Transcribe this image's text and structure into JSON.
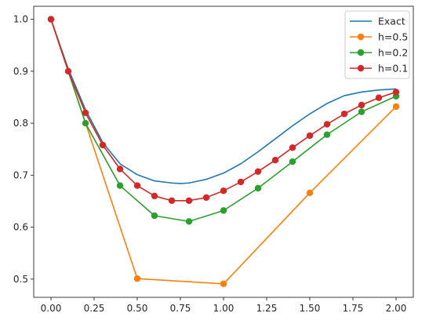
{
  "chart_data": {
    "type": "line",
    "title": "",
    "xlabel": "",
    "ylabel": "",
    "xlim": [
      -0.1,
      2.1
    ],
    "ylim": [
      0.465,
      1.025
    ],
    "x_ticks": [
      0.0,
      0.25,
      0.5,
      0.75,
      1.0,
      1.25,
      1.5,
      1.75,
      2.0
    ],
    "x_tick_labels": [
      "0.00",
      "0.25",
      "0.50",
      "0.75",
      "1.00",
      "1.25",
      "1.50",
      "1.75",
      "2.00"
    ],
    "y_ticks": [
      0.5,
      0.6,
      0.7,
      0.8,
      0.9,
      1.0
    ],
    "y_tick_labels": [
      "0.5",
      "0.6",
      "0.7",
      "0.8",
      "0.9",
      "1.0"
    ],
    "grid": false,
    "legend_position": "top-right",
    "series": [
      {
        "name": "Exact",
        "color": "#1f77b4",
        "marker": "none",
        "x": [
          0.0,
          0.1,
          0.2,
          0.3,
          0.4,
          0.5,
          0.6,
          0.7,
          0.75,
          0.8,
          0.9,
          1.0,
          1.1,
          1.2,
          1.3,
          1.4,
          1.5,
          1.6,
          1.7,
          1.8,
          1.9,
          2.0
        ],
        "values": [
          1.0,
          0.905,
          0.826,
          0.763,
          0.722,
          0.701,
          0.689,
          0.685,
          0.684,
          0.685,
          0.692,
          0.704,
          0.722,
          0.745,
          0.77,
          0.795,
          0.818,
          0.838,
          0.853,
          0.86,
          0.864,
          0.866
        ]
      },
      {
        "name": "h=0.5",
        "color": "#ff7f0e",
        "marker": "circle",
        "x": [
          0.0,
          0.5,
          1.0,
          1.5,
          2.0
        ],
        "values": [
          1.0,
          0.501,
          0.491,
          0.666,
          0.832
        ]
      },
      {
        "name": "h=0.2",
        "color": "#2ca02c",
        "marker": "circle",
        "x": [
          0.0,
          0.2,
          0.4,
          0.6,
          0.8,
          1.0,
          1.2,
          1.4,
          1.6,
          1.8,
          2.0
        ],
        "values": [
          1.0,
          0.8,
          0.68,
          0.622,
          0.611,
          0.632,
          0.675,
          0.726,
          0.778,
          0.822,
          0.852
        ]
      },
      {
        "name": "h=0.1",
        "color": "#d62728",
        "marker": "circle",
        "x": [
          0.0,
          0.1,
          0.2,
          0.3,
          0.4,
          0.5,
          0.6,
          0.7,
          0.8,
          0.9,
          1.0,
          1.1,
          1.2,
          1.3,
          1.4,
          1.5,
          1.6,
          1.7,
          1.8,
          1.9,
          2.0
        ],
        "values": [
          1.0,
          0.9,
          0.82,
          0.758,
          0.712,
          0.68,
          0.66,
          0.651,
          0.651,
          0.657,
          0.67,
          0.687,
          0.707,
          0.729,
          0.753,
          0.776,
          0.798,
          0.818,
          0.835,
          0.849,
          0.86
        ]
      }
    ]
  }
}
